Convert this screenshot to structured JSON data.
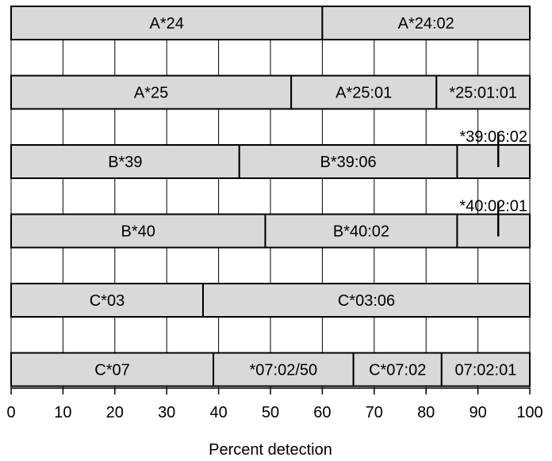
{
  "chart_data": {
    "type": "bar",
    "orientation": "horizontal",
    "stacked": true,
    "xlabel": "Percent detection",
    "xlim": [
      0,
      100
    ],
    "xticks": [
      0,
      10,
      20,
      30,
      40,
      50,
      60,
      70,
      80,
      90,
      100
    ],
    "grid": true,
    "bar_color": "#d9d9d9",
    "rows": [
      {
        "name": "A*24",
        "segments": [
          {
            "label": "A*24",
            "start": 0,
            "end": 60
          },
          {
            "label": "A*24:02",
            "start": 60,
            "end": 100
          }
        ]
      },
      {
        "name": "A*25",
        "segments": [
          {
            "label": "A*25",
            "start": 0,
            "end": 54
          },
          {
            "label": "A*25:01",
            "start": 54,
            "end": 82
          },
          {
            "label": "*25:01:01",
            "start": 82,
            "end": 100
          }
        ]
      },
      {
        "name": "B*39",
        "segments": [
          {
            "label": "B*39",
            "start": 0,
            "end": 44
          },
          {
            "label": "B*39:06",
            "start": 44,
            "end": 86
          },
          {
            "label": "",
            "start": 86,
            "end": 100,
            "callout": "*39:06:02"
          }
        ]
      },
      {
        "name": "B*40",
        "segments": [
          {
            "label": "B*40",
            "start": 0,
            "end": 49
          },
          {
            "label": "B*40:02",
            "start": 49,
            "end": 86
          },
          {
            "label": "",
            "start": 86,
            "end": 100,
            "callout": "*40:02:01"
          }
        ]
      },
      {
        "name": "C*03",
        "segments": [
          {
            "label": "C*03",
            "start": 0,
            "end": 37
          },
          {
            "label": "C*03:06",
            "start": 37,
            "end": 100
          }
        ]
      },
      {
        "name": "C*07",
        "segments": [
          {
            "label": "C*07",
            "start": 0,
            "end": 39
          },
          {
            "label": "*07:02/50",
            "start": 39,
            "end": 66
          },
          {
            "label": "C*07:02",
            "start": 66,
            "end": 83
          },
          {
            "label": "07:02:01",
            "start": 83,
            "end": 100
          }
        ]
      }
    ]
  }
}
